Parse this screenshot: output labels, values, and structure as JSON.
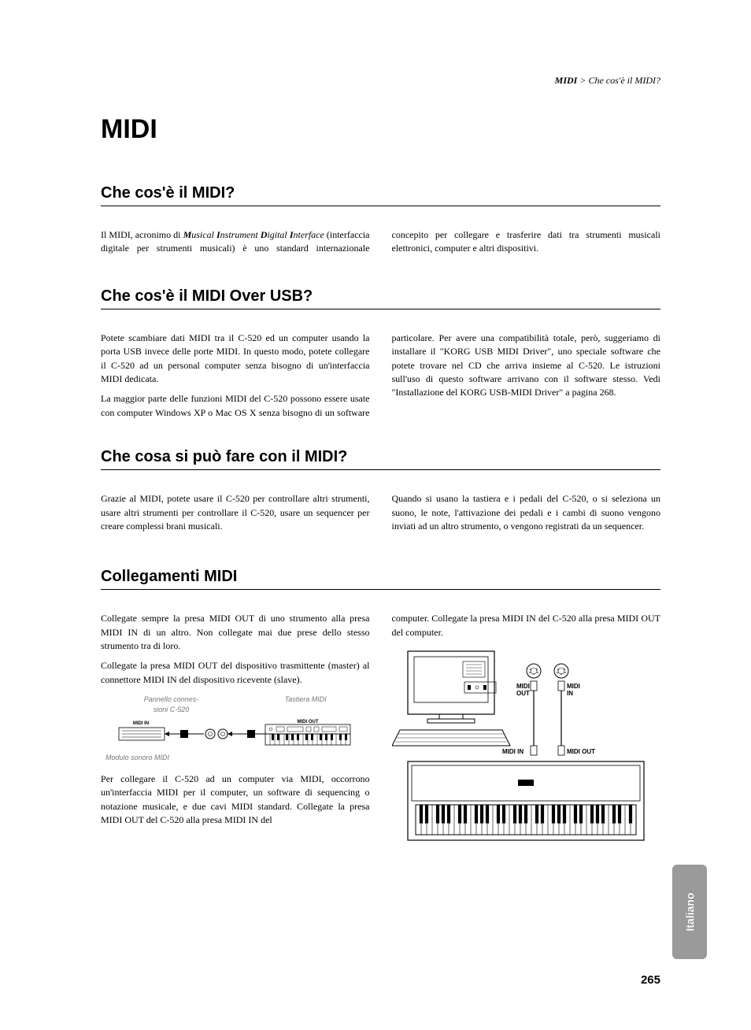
{
  "running_header": {
    "bold": "MIDI",
    "rest": " > Che cos'è il MIDI?"
  },
  "chapter_title": "MIDI",
  "sections": {
    "s1": {
      "title": "Che cos'è il MIDI?",
      "p1_a": "Il MIDI, acronimo di ",
      "p1_m": "M",
      "p1_m2": "usical ",
      "p1_i": "I",
      "p1_i2": "nstrument ",
      "p1_d": "D",
      "p1_d2": "igital ",
      "p1_i3": "I",
      "p1_i4": "nterface",
      "p1_b": " (interfaccia digitale per strumenti musicali) è uno standard inter",
      "p1_c": "nazionale concepito per collegare e trasferire dati tra strumenti musicali elettronici, computer e altri dispositivi."
    },
    "s2": {
      "title": "Che cos'è il MIDI Over USB?",
      "p1": "Potete scambiare dati MIDI tra il C-520 ed un computer usando la porta USB invece delle porte MIDI. In questo modo, potete collegare il C-520 ad un personal computer senza bisogno di un'interfaccia MIDI dedicata.",
      "p2": "La maggior parte delle funzioni MIDI del C-520 possono essere usate con computer Windows XP o Mac OS X senza biso",
      "p3": "gno di un software particolare. Per avere una compatibilità totale, però, suggeriamo di installare il \"KORG USB MIDI Driver\", uno speciale software che potete trovare nel CD che arriva insieme al C-520. Le istruzioni sull'uso di questo software arrivano con il software stesso. Vedi \"Installazione del KORG USB-MIDI Driver\" a pagina 268."
    },
    "s3": {
      "title": "Che cosa si può fare con il MIDI?",
      "p1": "Grazie al MIDI, potete usare il C-520 per controllare altri strumenti, usare altri strumenti per controllare il C-520, usare un sequencer per creare complessi brani musicali.",
      "p2": "Quando si usano la tastiera e i pedali del C-520, o si seleziona un suono, le note, l'attivazione dei pedali e i cambi di suono vengono inviati ad un altro strumento, o vengono registrati da un sequencer."
    },
    "s4": {
      "title": "Collegamenti MIDI",
      "p1": "Collegate sempre la presa MIDI OUT di uno strumento alla presa MIDI IN di un altro. Non collegate mai due prese dello stesso strumento tra di loro.",
      "p2": "Collegate la presa MIDI OUT del dispositivo trasmittente (master) al connettore MIDI IN del dispositivo ricevente (slave).",
      "p3": "Per collegare il C-520 ad un computer via MIDI, occorrono un'interfaccia MIDI per il computer, un software di sequencing o notazione musicale, e due cavi MIDI standard. Collegate la presa MIDI OUT del C-520 alla presa MIDI IN del",
      "p4": "computer. Collegate la presa MIDI IN del C-520 alla presa MIDI OUT del computer.",
      "diag1_labels": {
        "a": "Pannello connes-\nsioni C-520",
        "b": "Tastiera MIDI",
        "c": "Modulo sonoro MIDI",
        "midi_in": "MIDI IN",
        "midi_out": "MIDI OUT"
      },
      "diag2_labels": {
        "midi_out": "MIDI\nOUT",
        "midi_in": "MIDI\nIN",
        "midi_in2": "MIDI IN",
        "midi_out2": "MIDI OUT"
      }
    }
  },
  "side_tab": "Italiano",
  "page_number": "265",
  "colors": {
    "text": "#000000",
    "diagram_label": "#777777",
    "tab_bg": "#9a9a9a",
    "tab_text": "#ffffff"
  }
}
